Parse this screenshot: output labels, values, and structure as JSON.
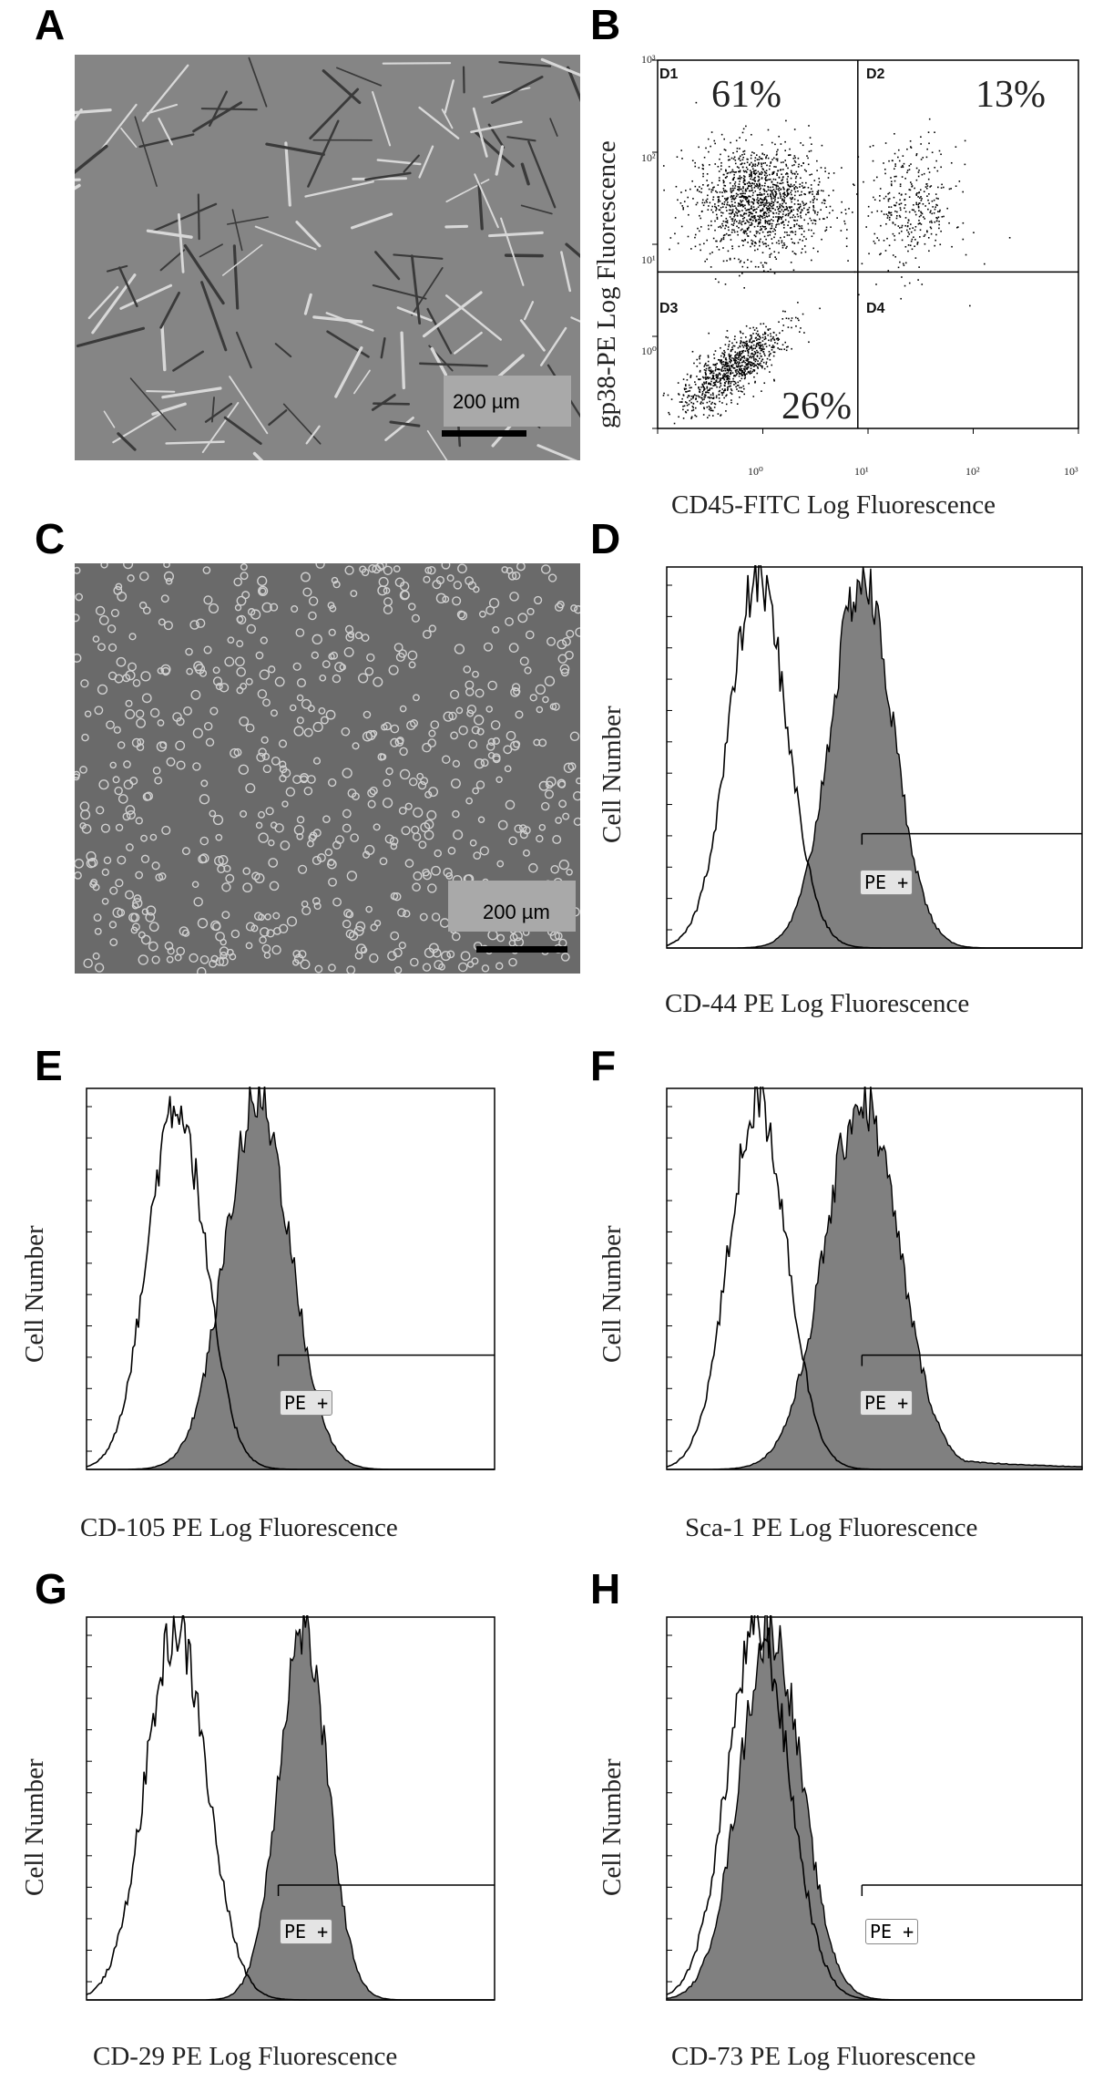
{
  "panels": {
    "A": {
      "label": "A",
      "scale": "200 µm"
    },
    "B": {
      "label": "B",
      "ylabel": "gp38-PE Log Fluorescence",
      "xlabel": "CD45-FITC Log Fluorescence",
      "quadrants": [
        {
          "name": "D1",
          "percent": "61%"
        },
        {
          "name": "D2",
          "percent": "13%"
        },
        {
          "name": "D3",
          "percent": "26%"
        },
        {
          "name": "D4",
          "percent": ""
        }
      ],
      "yticks": [
        "10³",
        "10²",
        "10¹",
        "10⁰"
      ],
      "xticks": [
        "10⁰",
        "10¹",
        "10²",
        "10³"
      ]
    },
    "C": {
      "label": "C",
      "scale": "200 µm"
    },
    "D": {
      "label": "D",
      "ylabel": "Cell Number",
      "xlabel": "CD-44 PE Log Fluorescence",
      "gate": "PE +"
    },
    "E": {
      "label": "E",
      "ylabel": "Cell Number",
      "xlabel": "CD-105 PE Log Fluorescence",
      "gate": "PE +"
    },
    "F": {
      "label": "F",
      "ylabel": "Cell Number",
      "xlabel": "Sca-1 PE Log Fluorescence",
      "gate": "PE +"
    },
    "G": {
      "label": "G",
      "ylabel": "Cell Number",
      "xlabel": "CD-29 PE Log Fluorescence",
      "gate": "PE +"
    },
    "H": {
      "label": "H",
      "ylabel": "Cell Number",
      "xlabel": "CD-73 PE Log Fluorescence",
      "gate": "PE +"
    }
  },
  "chart_data": [
    {
      "panel": "B",
      "type": "scatter",
      "xlabel": "CD45-FITC Log Fluorescence",
      "ylabel": "gp38-PE Log Fluorescence",
      "xscale": "log",
      "yscale": "log",
      "xlim": [
        0.1,
        1000
      ],
      "ylim": [
        0.1,
        1000
      ],
      "quadrant_percent": {
        "D1": 61,
        "D2": 13,
        "D3": 26
      }
    },
    {
      "panel": "D",
      "type": "area",
      "xlabel": "CD-44 PE Log Fluorescence",
      "ylabel": "Cell Number",
      "series": [
        {
          "fill": "none",
          "peak_x_frac": 0.22,
          "width": 0.07
        },
        {
          "fill": "#808080",
          "peak_x_frac": 0.47,
          "width": 0.075
        }
      ],
      "gate_start_frac": 0.47
    },
    {
      "panel": "E",
      "type": "area",
      "xlabel": "CD-105 PE Log Fluorescence",
      "ylabel": "Cell Number",
      "series": [
        {
          "fill": "none",
          "peak_x_frac": 0.22,
          "width": 0.07
        },
        {
          "fill": "#808080",
          "peak_x_frac": 0.42,
          "width": 0.08
        }
      ],
      "gate_start_frac": 0.47
    },
    {
      "panel": "F",
      "type": "area",
      "xlabel": "Sca-1 PE Log Fluorescence",
      "ylabel": "Cell Number",
      "series": [
        {
          "fill": "none",
          "peak_x_frac": 0.22,
          "width": 0.07
        },
        {
          "fill": "#808080",
          "peak_x_frac": 0.47,
          "width": 0.09
        }
      ],
      "gate_start_frac": 0.47
    },
    {
      "panel": "G",
      "type": "area",
      "xlabel": "CD-29 PE Log Fluorescence",
      "ylabel": "Cell Number",
      "series": [
        {
          "fill": "none",
          "peak_x_frac": 0.22,
          "width": 0.075
        },
        {
          "fill": "#808080",
          "peak_x_frac": 0.53,
          "width": 0.06
        }
      ],
      "gate_start_frac": 0.47
    },
    {
      "panel": "H",
      "type": "area",
      "xlabel": "CD-73 PE Log Fluorescence",
      "ylabel": "Cell Number",
      "series": [
        {
          "fill": "none",
          "peak_x_frac": 0.22,
          "width": 0.075
        },
        {
          "fill": "#808080",
          "peak_x_frac": 0.25,
          "width": 0.075
        }
      ],
      "gate_start_frac": 0.47
    }
  ]
}
